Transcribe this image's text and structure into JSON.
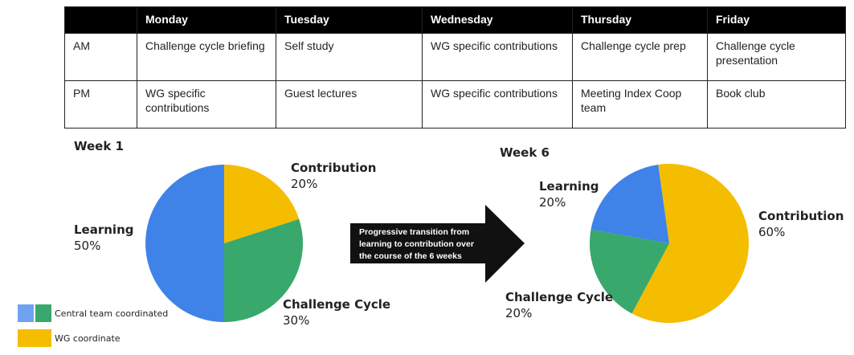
{
  "table": {
    "columns": [
      "Monday",
      "Tuesday",
      "Wednesday",
      "Thursday",
      "Friday"
    ],
    "rows": [
      {
        "label": "AM",
        "cells": [
          "Challenge cycle briefing",
          "Self study",
          "WG specific contributions",
          "Challenge cycle prep",
          "Challenge cycle presentation"
        ]
      },
      {
        "label": "PM",
        "cells": [
          "WG specific contributions",
          "Guest lectures",
          "WG specific contributions",
          "Meeting Index Coop team",
          "Book club"
        ]
      }
    ]
  },
  "chart_data": [
    {
      "type": "pie",
      "title": "Week 1",
      "categories": [
        "Contribution",
        "Challenge Cycle",
        "Learning"
      ],
      "values": [
        20,
        30,
        50
      ],
      "value_labels": [
        "20%",
        "30%",
        "50%"
      ],
      "colors": [
        "#f4bd00",
        "#38a86c",
        "#3f83e8"
      ]
    },
    {
      "type": "pie",
      "title": "Week 6",
      "categories": [
        "Contribution",
        "Challenge Cycle",
        "Learning"
      ],
      "values": [
        60,
        20,
        20
      ],
      "value_labels": [
        "60%",
        "20%",
        "20%"
      ],
      "colors": [
        "#f4bd00",
        "#38a86c",
        "#3f83e8"
      ]
    }
  ],
  "annotation": "Progressive transition from learning to contribution over the course of the 6 weeks",
  "legend": [
    {
      "label": "Central team coordinated",
      "colors": [
        "#6fa3f2",
        "#38a86c"
      ]
    },
    {
      "label": "WG coordinate",
      "colors": [
        "#f4bd00"
      ]
    }
  ]
}
